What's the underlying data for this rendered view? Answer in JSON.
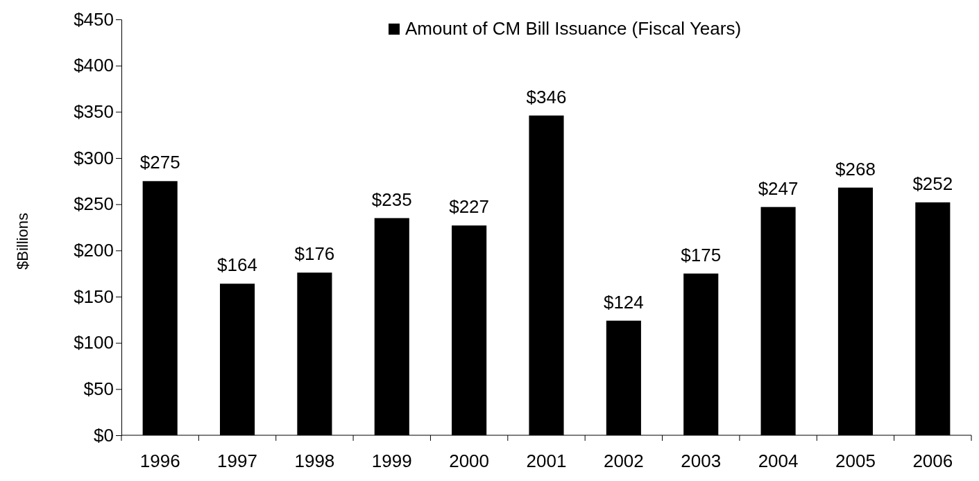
{
  "chart_data": {
    "type": "bar",
    "ylabel": "$Billions",
    "categories": [
      "1996",
      "1997",
      "1998",
      "1999",
      "2000",
      "2001",
      "2002",
      "2003",
      "2004",
      "2005",
      "2006"
    ],
    "series": [
      {
        "name": "Amount of CM Bill Issuance (Fiscal Years)",
        "color": "#000000",
        "values": [
          275,
          164,
          176,
          235,
          227,
          346,
          124,
          175,
          247,
          268,
          252
        ],
        "value_labels": [
          "$275",
          "$164",
          "$176",
          "$235",
          "$227",
          "$346",
          "$124",
          "$175",
          "$247",
          "$268",
          "$252"
        ]
      }
    ],
    "ylim": [
      0,
      450
    ],
    "yticks": [
      {
        "value": 0,
        "label": "$0"
      },
      {
        "value": 50,
        "label": "$50"
      },
      {
        "value": 100,
        "label": "$100"
      },
      {
        "value": 150,
        "label": "$150"
      },
      {
        "value": 200,
        "label": "$200"
      },
      {
        "value": 250,
        "label": "$250"
      },
      {
        "value": 300,
        "label": "$300"
      },
      {
        "value": 350,
        "label": "$350"
      },
      {
        "value": 400,
        "label": "$400"
      },
      {
        "value": 450,
        "label": "$450"
      }
    ],
    "grid": false,
    "legend": "top"
  }
}
